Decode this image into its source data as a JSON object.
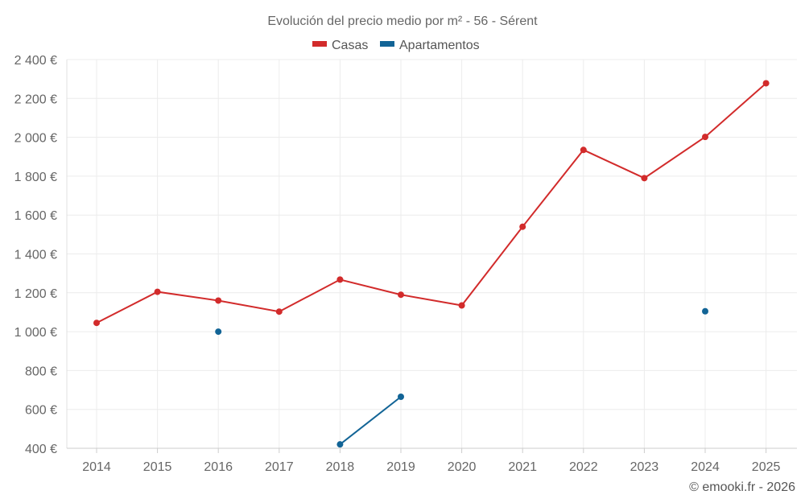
{
  "chart_data": {
    "type": "line",
    "title": "Evolución del precio medio por m² - 56 - Sérent",
    "categories": [
      "2014",
      "2015",
      "2016",
      "2017",
      "2018",
      "2019",
      "2020",
      "2021",
      "2022",
      "2023",
      "2024",
      "2025"
    ],
    "series": [
      {
        "name": "Casas",
        "color": "#d22b2b",
        "values": [
          1045,
          1205,
          1160,
          1103,
          1268,
          1190,
          1135,
          1540,
          1935,
          1790,
          2002,
          2278
        ]
      },
      {
        "name": "Apartamentos",
        "color": "#126496",
        "values": [
          null,
          null,
          1000,
          null,
          420,
          665,
          null,
          null,
          null,
          null,
          1105,
          null
        ]
      }
    ],
    "ylim": [
      400,
      2400
    ],
    "y_ticks": [
      400,
      600,
      800,
      1000,
      1200,
      1400,
      1600,
      1800,
      2000,
      2200,
      2400
    ],
    "y_tick_labels": [
      "400 €",
      "600 €",
      "800 €",
      "1 000 €",
      "1 200 €",
      "1 400 €",
      "1 600 €",
      "1 800 €",
      "2 000 €",
      "2 200 €",
      "2 400 €"
    ],
    "xlabel": "",
    "ylabel": "",
    "legend_position": "top-center",
    "grid": true
  },
  "credit": "© emooki.fr - 2026"
}
